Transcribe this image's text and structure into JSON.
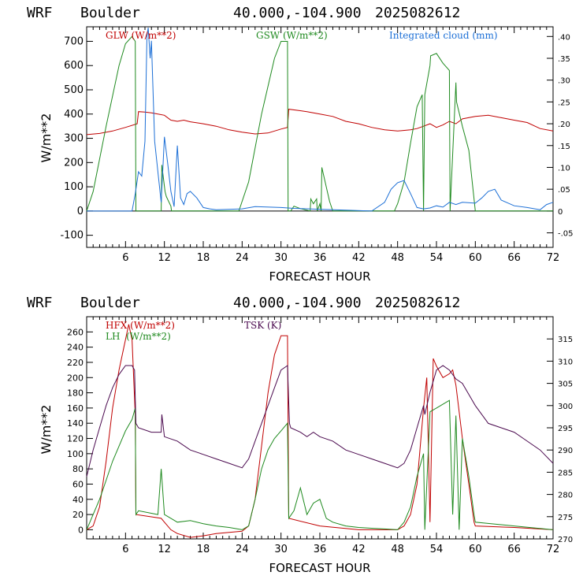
{
  "chart_data": [
    {
      "type": "line",
      "header": {
        "model": "WRF",
        "location": "Boulder",
        "coords": "40.000,-104.900",
        "run": "2025082612"
      },
      "xlabel": "FORECAST HOUR",
      "ylabel": "W/m**2",
      "xlim": [
        0,
        72
      ],
      "ylim_left": [
        -150,
        760
      ],
      "ylim_right": [
        -0.0833,
        0.4222
      ],
      "x_ticks": [
        "6",
        "12",
        "18",
        "24",
        "30",
        "36",
        "42",
        "48",
        "54",
        "60",
        "66",
        "72"
      ],
      "y_ticks_left": [
        "-100",
        "0",
        "100",
        "200",
        "300",
        "400",
        "500",
        "600",
        "700"
      ],
      "y_ticks_right": [
        "-.05",
        "0",
        ".05",
        ".10",
        ".15",
        ".20",
        ".25",
        ".30",
        ".35",
        ".40"
      ],
      "legend": [
        "GLW (W/m**2)",
        "GSW (W/m**2)",
        "Integrated cloud (mm)"
      ],
      "colors": {
        "GLW": "#c00000",
        "GSW": "#1f8a1f",
        "CLOUD": "#1c6fd6"
      },
      "series": [
        {
          "name": "GLW (W/m**2)",
          "axis": "left",
          "x": [
            0,
            2,
            4,
            6,
            7.8,
            8,
            9,
            10,
            11,
            12,
            13,
            14,
            15,
            16,
            18,
            20,
            22,
            24,
            26,
            28,
            30,
            31,
            31.2,
            34,
            36,
            38,
            40,
            42,
            44,
            46,
            48,
            50,
            51,
            52,
            53,
            54,
            55,
            56,
            57,
            58,
            60,
            62,
            64,
            66,
            68,
            70,
            72
          ],
          "y": [
            315,
            320,
            330,
            345,
            360,
            410,
            408,
            405,
            400,
            395,
            375,
            370,
            375,
            368,
            360,
            350,
            335,
            325,
            318,
            322,
            338,
            345,
            420,
            410,
            400,
            390,
            370,
            360,
            345,
            335,
            330,
            335,
            340,
            350,
            360,
            345,
            355,
            370,
            360,
            380,
            390,
            395,
            385,
            375,
            365,
            340,
            330
          ]
        },
        {
          "name": "GSW (W/m**2)",
          "axis": "left",
          "x": [
            0,
            1,
            3,
            5,
            6,
            7,
            7.5,
            7.6,
            8,
            11.5,
            11.6,
            12.1,
            12.3,
            13,
            13.1,
            23.5,
            25,
            27,
            29,
            30,
            31,
            31.1,
            31.5,
            32,
            33,
            34.5,
            34.6,
            35,
            35.5,
            35.6,
            36,
            36.2,
            36.3,
            37.5,
            38,
            47.5,
            48,
            49,
            50,
            51,
            51.8,
            52,
            52.2,
            53,
            53.1,
            54,
            55,
            56,
            56.1,
            57,
            57.1,
            58,
            59,
            59.8,
            60,
            72
          ],
          "y": [
            0,
            80,
            350,
            600,
            690,
            720,
            700,
            0,
            0,
            0,
            190,
            80,
            60,
            20,
            0,
            0,
            120,
            400,
            630,
            700,
            700,
            0,
            0,
            20,
            10,
            0,
            50,
            30,
            50,
            0,
            30,
            0,
            180,
            40,
            0,
            0,
            30,
            120,
            280,
            430,
            480,
            0,
            480,
            600,
            640,
            650,
            610,
            580,
            0,
            530,
            450,
            350,
            250,
            50,
            0,
            0
          ]
        },
        {
          "name": "Integrated cloud (mm)",
          "axis": "right",
          "x": [
            0,
            7,
            7.5,
            8,
            8.5,
            9,
            9.3,
            9.5,
            9.8,
            10,
            10.5,
            11,
            11.5,
            12,
            12.5,
            13,
            13.5,
            14,
            14.5,
            15,
            15.5,
            16,
            17,
            18,
            19,
            20,
            24,
            26,
            30,
            32,
            36,
            44,
            46,
            47,
            48,
            49,
            50,
            51,
            52,
            53,
            54,
            55,
            56,
            57,
            58,
            60,
            61,
            62,
            63,
            64,
            66,
            68,
            70,
            71,
            72
          ],
          "y": [
            0,
            0,
            0.04,
            0.09,
            0.08,
            0.16,
            0.4,
            0.42,
            0.35,
            0.39,
            0.16,
            0.09,
            0.02,
            0.17,
            0.11,
            0.045,
            0.01,
            0.15,
            0.03,
            0.015,
            0.04,
            0.045,
            0.03,
            0.008,
            0.005,
            0.003,
            0.005,
            0.01,
            0.008,
            0.006,
            0.004,
            0,
            0.02,
            0.05,
            0.065,
            0.07,
            0.04,
            0.008,
            0.005,
            0.007,
            0.012,
            0.009,
            0.02,
            0.015,
            0.02,
            0.018,
            0.03,
            0.045,
            0.05,
            0.025,
            0.012,
            0.008,
            0.003,
            0.015,
            0.02
          ]
        }
      ]
    },
    {
      "type": "line",
      "header": {
        "model": "WRF",
        "location": "Boulder",
        "coords": "40.000,-104.900",
        "run": "2025082612"
      },
      "xlabel": "FORECAST HOUR",
      "ylabel": "W/m**2",
      "xlim": [
        0,
        72
      ],
      "ylim_left": [
        -12,
        280
      ],
      "ylim_right": [
        270,
        320
      ],
      "x_ticks": [
        "6",
        "12",
        "18",
        "24",
        "30",
        "36",
        "42",
        "48",
        "54",
        "60",
        "66",
        "72"
      ],
      "y_ticks_left": [
        "0",
        "20",
        "40",
        "60",
        "80",
        "100",
        "120",
        "140",
        "160",
        "180",
        "200",
        "220",
        "240",
        "260"
      ],
      "y_ticks_right": [
        "270",
        "275",
        "280",
        "285",
        "290",
        "295",
        "300",
        "305",
        "310",
        "315"
      ],
      "legend": [
        "HFX (W/m**2)",
        "LH  (W/m**2)",
        "TSK (K)"
      ],
      "colors": {
        "HFX": "#c00000",
        "LH": "#1f8a1f",
        "TSK": "#4b0a4f"
      },
      "series": [
        {
          "name": "HFX (W/m**2)",
          "axis": "left",
          "x": [
            0,
            1,
            2,
            3,
            4,
            5,
            6,
            6.5,
            7,
            7.5,
            7.6,
            11.5,
            12,
            13,
            14,
            16,
            18,
            20,
            24,
            25,
            26,
            27,
            28,
            29,
            30,
            31,
            31.2,
            36,
            42,
            48,
            49,
            50,
            51,
            52,
            52.5,
            53,
            53.5,
            54,
            55,
            56,
            56.5,
            57,
            58,
            59,
            59.8,
            60,
            66,
            72
          ],
          "y": [
            0,
            5,
            30,
            90,
            160,
            210,
            250,
            270,
            250,
            150,
            20,
            15,
            10,
            0,
            -5,
            -10,
            -8,
            -5,
            -2,
            5,
            40,
            110,
            180,
            230,
            255,
            255,
            15,
            5,
            0,
            0,
            5,
            20,
            60,
            160,
            200,
            10,
            225,
            215,
            200,
            205,
            210,
            190,
            120,
            60,
            10,
            5,
            3,
            0
          ]
        },
        {
          "name": "LH  (W/m**2)",
          "axis": "left",
          "x": [
            0,
            1,
            2,
            3,
            4,
            5,
            6,
            7,
            7.5,
            7.6,
            8,
            11,
            11.5,
            12,
            13,
            14,
            16,
            18,
            20,
            22,
            24,
            25,
            26,
            27,
            28,
            29,
            30,
            31,
            31.2,
            32,
            33,
            34,
            35,
            36,
            37,
            38,
            40,
            42,
            44,
            46,
            48,
            49,
            50,
            51,
            52,
            52.2,
            53,
            54,
            55,
            56,
            56.5,
            57,
            57.5,
            58,
            59,
            59.8,
            60,
            66,
            72
          ],
          "y": [
            0,
            20,
            40,
            65,
            90,
            110,
            130,
            145,
            160,
            20,
            25,
            20,
            80,
            20,
            15,
            10,
            12,
            8,
            5,
            3,
            0,
            5,
            40,
            80,
            105,
            120,
            130,
            140,
            15,
            25,
            55,
            20,
            35,
            40,
            15,
            10,
            5,
            3,
            2,
            1,
            0,
            10,
            30,
            70,
            100,
            0,
            155,
            160,
            165,
            170,
            20,
            150,
            0,
            120,
            70,
            20,
            10,
            5,
            0
          ]
        },
        {
          "name": "TSK (K)",
          "axis": "right",
          "x": [
            0,
            1,
            2,
            3,
            4,
            5,
            6,
            7,
            7.4,
            7.6,
            8,
            10,
            11.5,
            11.6,
            12,
            14,
            16,
            18,
            20,
            22,
            24,
            25,
            26,
            27,
            28,
            29,
            30,
            31,
            31.3,
            31.5,
            33,
            34,
            35,
            36,
            38,
            40,
            42,
            44,
            46,
            48,
            49,
            50,
            51,
            52,
            52.2,
            53,
            54,
            55,
            56,
            57,
            58,
            60,
            62,
            64,
            66,
            68,
            70,
            72
          ],
          "y": [
            284,
            290,
            295,
            300,
            304,
            307,
            309,
            309,
            308,
            296,
            295,
            294,
            294,
            298,
            293,
            292,
            290,
            289,
            288,
            287,
            286,
            288,
            292,
            296,
            300,
            304,
            308,
            309,
            296,
            295,
            294,
            293,
            294,
            293,
            292,
            290,
            289,
            288,
            287,
            286,
            287,
            290,
            295,
            300,
            298,
            303,
            308,
            309,
            308,
            306,
            305,
            300,
            296,
            295,
            294,
            292,
            290,
            287
          ]
        }
      ]
    }
  ]
}
